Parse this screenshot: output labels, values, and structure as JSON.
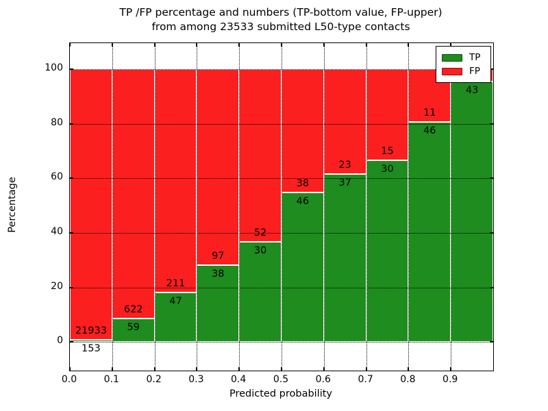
{
  "title": {
    "line1": "TP /FP percentage and numbers (TP-bottom value, FP-upper)",
    "line2": "from among 23533 submitted L50-type contacts"
  },
  "axes": {
    "xlabel": "Predicted probability",
    "ylabel": "Percentage",
    "x_tick_labels": [
      "0.0",
      "0.1",
      "0.2",
      "0.3",
      "0.4",
      "0.5",
      "0.6",
      "0.7",
      "0.8",
      "0.9"
    ],
    "x_tick_values": [
      0.0,
      0.1,
      0.2,
      0.3,
      0.4,
      0.5,
      0.6,
      0.7,
      0.8,
      0.9
    ],
    "y_tick_labels": [
      "0",
      "20",
      "40",
      "60",
      "80",
      "100"
    ],
    "y_tick_values": [
      0,
      20,
      40,
      60,
      80,
      100
    ],
    "ylim": [
      -10.5,
      109.5
    ],
    "grid": "dotted"
  },
  "legend": {
    "position": "upper-right",
    "items": [
      {
        "label": "TP",
        "color": "#1e8c1e"
      },
      {
        "label": "FP",
        "color": "#fb1f1f"
      }
    ]
  },
  "colors": {
    "tp": "#1e8c1e",
    "fp": "#fb1f1f",
    "bar_edge": "#ffffff",
    "grid": "#000000",
    "background": "#ffffff"
  },
  "chart_data": {
    "type": "bar",
    "stacked": true,
    "normalized_to_percent": true,
    "title": "TP /FP percentage and numbers (TP-bottom value, FP-upper) from among 23533 submitted L50-type contacts",
    "xlabel": "Predicted probability",
    "ylabel": "Percentage",
    "total_submitted": 23533,
    "bin_width": 0.1,
    "bars": [
      {
        "x0": 0.0,
        "x1": 0.1,
        "tp": 153,
        "fp": 21933,
        "tp_pct": 0.69,
        "fp_pct": 99.31
      },
      {
        "x0": 0.1,
        "x1": 0.2,
        "tp": 59,
        "fp": 622,
        "tp_pct": 8.66,
        "fp_pct": 91.34
      },
      {
        "x0": 0.2,
        "x1": 0.3,
        "tp": 47,
        "fp": 211,
        "tp_pct": 18.22,
        "fp_pct": 81.78
      },
      {
        "x0": 0.3,
        "x1": 0.4,
        "tp": 38,
        "fp": 97,
        "tp_pct": 28.15,
        "fp_pct": 71.85
      },
      {
        "x0": 0.4,
        "x1": 0.5,
        "tp": 30,
        "fp": 52,
        "tp_pct": 36.59,
        "fp_pct": 63.41
      },
      {
        "x0": 0.5,
        "x1": 0.6,
        "tp": 46,
        "fp": 38,
        "tp_pct": 54.76,
        "fp_pct": 45.24
      },
      {
        "x0": 0.6,
        "x1": 0.7,
        "tp": 37,
        "fp": 23,
        "tp_pct": 61.67,
        "fp_pct": 38.33
      },
      {
        "x0": 0.7,
        "x1": 0.8,
        "tp": 30,
        "fp": 15,
        "tp_pct": 66.67,
        "fp_pct": 33.33
      },
      {
        "x0": 0.8,
        "x1": 0.9,
        "tp": 46,
        "fp": 11,
        "tp_pct": 80.7,
        "fp_pct": 19.3
      },
      {
        "x0": 0.9,
        "x1": 1.0,
        "tp": 43,
        "fp": null,
        "tp_pct": 95.5,
        "fp_pct": 4.5,
        "fp_label_hidden_by_legend": true
      }
    ],
    "series": [
      {
        "name": "TP",
        "counts": [
          153,
          59,
          47,
          38,
          30,
          46,
          37,
          30,
          46,
          43
        ]
      },
      {
        "name": "FP",
        "counts": [
          21933,
          622,
          211,
          97,
          52,
          38,
          23,
          15,
          11,
          null
        ]
      }
    ]
  }
}
